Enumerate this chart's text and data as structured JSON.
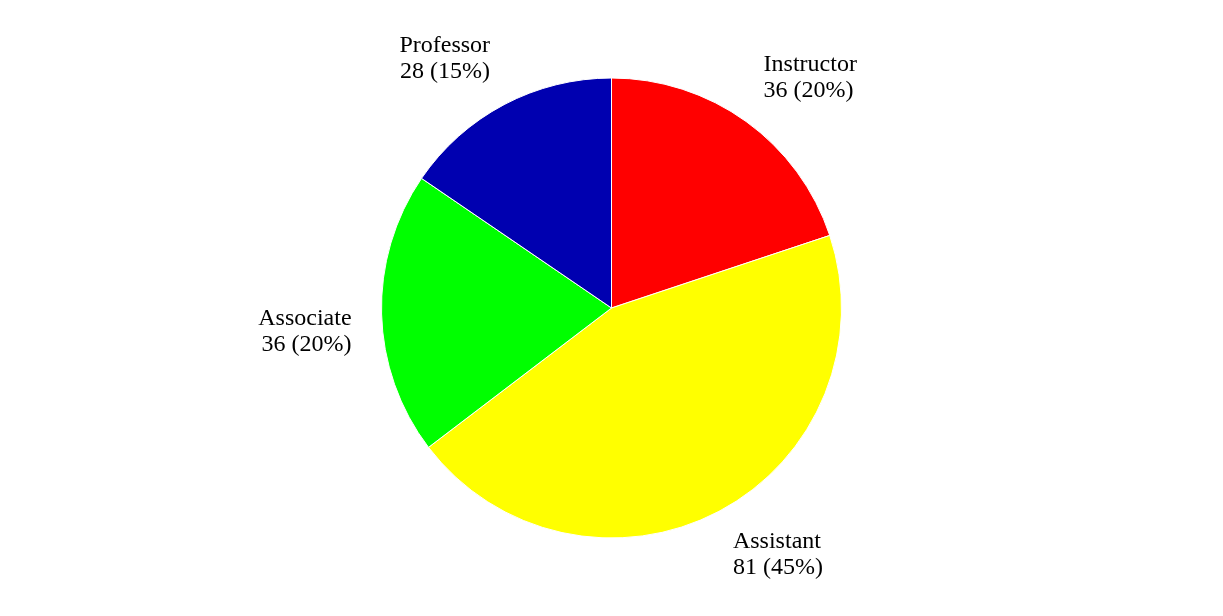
{
  "chart_data": {
    "type": "pie",
    "categories": [
      "Instructor",
      "Assistant",
      "Associate",
      "Professor"
    ],
    "values": [
      36,
      81,
      36,
      28
    ],
    "value_labels": [
      "36 (20%)",
      "81 (45%)",
      "36 (20%)",
      "28 (15%)"
    ],
    "colors": [
      "#ff0000",
      "#ffff00",
      "#00ff00",
      "#0000b0"
    ]
  }
}
